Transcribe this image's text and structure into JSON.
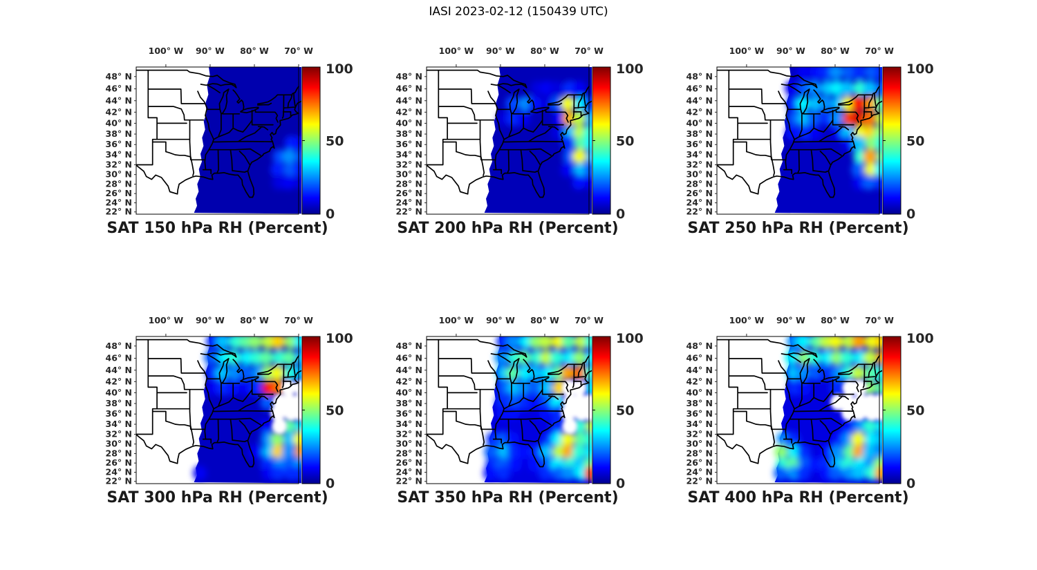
{
  "figure": {
    "title": "IASI 2023-02-12 (150439 UTC)",
    "instrument": "IASI",
    "date": "2023-02-12",
    "time_utc": "150439"
  },
  "axes": {
    "lon_tick_labels": [
      "100° W",
      "90° W",
      "80° W",
      "70° W"
    ],
    "lon_tick_values": [
      -100,
      -90,
      -80,
      -70
    ],
    "lat_tick_labels": [
      "48° N",
      "46° N",
      "44° N",
      "42° N",
      "40° N",
      "38° N",
      "36° N",
      "34° N",
      "32° N",
      "30° N",
      "28° N",
      "26° N",
      "24° N",
      "22° N"
    ],
    "lat_tick_values": [
      48,
      46,
      44,
      42,
      40,
      38,
      36,
      34,
      32,
      30,
      28,
      26,
      24,
      22
    ],
    "lon_range_deg_w": [
      106.7,
      70
    ],
    "lat_range_deg_n": [
      21.5,
      49.5
    ],
    "projection": "mercator"
  },
  "colorbar": {
    "tick_labels": [
      "100",
      "50",
      "0"
    ],
    "tick_values": [
      100,
      50,
      0
    ],
    "min": 0,
    "max": 100,
    "colormap": "jet"
  },
  "colors": {
    "text": "#262626",
    "axis": "#000000",
    "background": "#ffffff",
    "jet_stops": [
      {
        "t": 0.0,
        "c": "#00008f"
      },
      {
        "t": 0.11,
        "c": "#0000ff"
      },
      {
        "t": 0.36,
        "c": "#00ffff"
      },
      {
        "t": 0.61,
        "c": "#ffff00"
      },
      {
        "t": 0.86,
        "c": "#ff0000"
      },
      {
        "t": 1.0,
        "c": "#7f0000"
      }
    ]
  },
  "chart_grid": {
    "description": "Coarse RH grid estimated from the plotted satellite swath; rows north to south, cols west to east; -1 = no-data (white gap), null = outside swath",
    "lons_w": [
      92,
      89.5,
      87,
      84.5,
      82,
      79.5,
      77,
      74.5,
      72,
      69.5
    ],
    "lats_n": [
      48.5,
      46,
      43.5,
      41,
      38.5,
      36,
      33.5,
      31,
      28.5,
      26,
      23.5
    ],
    "no_data_value": -1
  },
  "chart_data": [
    {
      "type": "heatmap",
      "pressure_hPa": 150,
      "title": "SAT 150 hPa RH (Percent)",
      "variable": "Relative Humidity",
      "units": "Percent",
      "base_rh": 3,
      "rh_grid": [
        [
          null,
          3,
          3,
          3,
          3,
          3,
          3,
          3,
          3,
          3
        ],
        [
          null,
          3,
          3,
          3,
          3,
          3,
          3,
          3,
          3,
          3
        ],
        [
          null,
          3,
          3,
          3,
          3,
          3,
          3,
          3,
          3,
          3
        ],
        [
          null,
          3,
          3,
          3,
          3,
          3,
          3,
          3,
          3,
          3
        ],
        [
          null,
          3,
          3,
          3,
          3,
          3,
          3,
          3,
          4,
          6
        ],
        [
          null,
          3,
          3,
          3,
          3,
          3,
          3,
          6,
          14,
          12
        ],
        [
          null,
          3,
          3,
          3,
          3,
          3,
          5,
          18,
          25,
          18
        ],
        [
          3,
          3,
          3,
          3,
          3,
          3,
          6,
          14,
          20,
          14
        ],
        [
          3,
          3,
          3,
          3,
          3,
          3,
          3,
          8,
          10,
          8
        ],
        [
          3,
          3,
          3,
          3,
          3,
          3,
          3,
          4,
          5,
          4
        ],
        [
          3,
          3,
          3,
          3,
          3,
          3,
          3,
          3,
          3,
          3
        ]
      ]
    },
    {
      "type": "heatmap",
      "pressure_hPa": 200,
      "title": "SAT 200 hPa RH (Percent)",
      "variable": "Relative Humidity",
      "units": "Percent",
      "base_rh": 4,
      "rh_grid": [
        [
          null,
          4,
          4,
          4,
          5,
          6,
          5,
          5,
          6,
          5
        ],
        [
          null,
          4,
          5,
          6,
          8,
          10,
          8,
          15,
          10,
          6
        ],
        [
          null,
          5,
          18,
          25,
          12,
          8,
          20,
          60,
          35,
          15
        ],
        [
          null,
          8,
          15,
          10,
          6,
          5,
          10,
          70,
          55,
          30
        ],
        [
          null,
          5,
          6,
          5,
          4,
          4,
          8,
          30,
          55,
          40
        ],
        [
          null,
          4,
          4,
          4,
          4,
          4,
          5,
          15,
          45,
          35
        ],
        [
          null,
          4,
          4,
          4,
          4,
          4,
          5,
          20,
          60,
          30
        ],
        [
          4,
          4,
          4,
          4,
          4,
          4,
          4,
          10,
          30,
          20
        ],
        [
          4,
          4,
          4,
          4,
          4,
          4,
          4,
          6,
          12,
          10
        ],
        [
          4,
          4,
          4,
          4,
          4,
          4,
          4,
          5,
          6,
          5
        ],
        [
          4,
          4,
          4,
          4,
          4,
          4,
          4,
          4,
          4,
          4
        ]
      ]
    },
    {
      "type": "heatmap",
      "pressure_hPa": 250,
      "title": "SAT 250 hPa RH (Percent)",
      "variable": "Relative Humidity",
      "units": "Percent",
      "base_rh": 5,
      "rh_grid": [
        [
          null,
          8,
          10,
          12,
          15,
          25,
          20,
          15,
          20,
          15
        ],
        [
          null,
          10,
          20,
          25,
          30,
          35,
          30,
          40,
          30,
          20
        ],
        [
          null,
          15,
          35,
          30,
          25,
          30,
          60,
          85,
          70,
          45
        ],
        [
          null,
          20,
          30,
          20,
          15,
          25,
          80,
          90,
          75,
          55
        ],
        [
          null,
          12,
          15,
          10,
          8,
          10,
          30,
          60,
          65,
          50
        ],
        [
          null,
          8,
          8,
          6,
          5,
          6,
          10,
          30,
          50,
          40
        ],
        [
          null,
          6,
          6,
          5,
          5,
          5,
          8,
          40,
          70,
          45
        ],
        [
          5,
          5,
          5,
          5,
          5,
          5,
          6,
          20,
          60,
          35
        ],
        [
          5,
          5,
          5,
          5,
          5,
          5,
          5,
          10,
          20,
          15
        ],
        [
          5,
          5,
          5,
          5,
          5,
          5,
          5,
          6,
          8,
          6
        ],
        [
          5,
          5,
          5,
          5,
          5,
          5,
          5,
          5,
          5,
          5
        ]
      ]
    },
    {
      "type": "heatmap",
      "pressure_hPa": 300,
      "title": "SAT 300 hPa RH (Percent)",
      "variable": "Relative Humidity",
      "units": "Percent",
      "base_rh": 5,
      "rh_grid": [
        [
          null,
          15,
          30,
          40,
          45,
          50,
          55,
          65,
          50,
          35
        ],
        [
          null,
          20,
          35,
          40,
          35,
          40,
          45,
          40,
          45,
          30
        ],
        [
          null,
          15,
          30,
          25,
          20,
          25,
          50,
          60,
          40,
          30
        ],
        [
          null,
          10,
          15,
          12,
          10,
          15,
          85,
          75,
          -1,
          -1
        ],
        [
          null,
          8,
          8,
          6,
          5,
          8,
          20,
          -1,
          -1,
          -1
        ],
        [
          null,
          6,
          5,
          5,
          4,
          5,
          8,
          -1,
          -1,
          -1
        ],
        [
          null,
          5,
          5,
          4,
          4,
          5,
          10,
          -1,
          45,
          35
        ],
        [
          5,
          5,
          5,
          4,
          4,
          8,
          25,
          50,
          30,
          60
        ],
        [
          5,
          5,
          5,
          5,
          5,
          10,
          30,
          65,
          25,
          70
        ],
        [
          8,
          6,
          5,
          5,
          5,
          8,
          15,
          25,
          20,
          25
        ],
        [
          10,
          8,
          6,
          5,
          5,
          6,
          10,
          15,
          15,
          15
        ]
      ]
    },
    {
      "type": "heatmap",
      "pressure_hPa": 350,
      "title": "SAT 350 hPa RH (Percent)",
      "variable": "Relative Humidity",
      "units": "Percent",
      "base_rh": 8,
      "rh_grid": [
        [
          null,
          15,
          25,
          35,
          50,
          55,
          60,
          45,
          55,
          40
        ],
        [
          null,
          25,
          40,
          45,
          40,
          55,
          40,
          35,
          50,
          35
        ],
        [
          null,
          30,
          45,
          35,
          30,
          35,
          45,
          70,
          75,
          40
        ],
        [
          null,
          20,
          30,
          25,
          20,
          30,
          65,
          -1,
          -1,
          35
        ],
        [
          null,
          15,
          20,
          15,
          12,
          20,
          35,
          -1,
          -1,
          -1
        ],
        [
          null,
          12,
          12,
          10,
          10,
          12,
          15,
          -1,
          -1,
          -1
        ],
        [
          null,
          10,
          10,
          8,
          8,
          10,
          15,
          -1,
          40,
          55
        ],
        [
          15,
          20,
          12,
          10,
          10,
          15,
          35,
          60,
          45,
          40
        ],
        [
          20,
          30,
          15,
          12,
          15,
          30,
          55,
          70,
          40,
          35
        ],
        [
          15,
          20,
          12,
          10,
          12,
          20,
          35,
          40,
          30,
          45
        ],
        [
          12,
          15,
          10,
          8,
          10,
          15,
          20,
          25,
          35,
          80
        ]
      ]
    },
    {
      "type": "heatmap",
      "pressure_hPa": 400,
      "title": "SAT 400 hPa RH (Percent)",
      "variable": "Relative Humidity",
      "units": "Percent",
      "base_rh": 8,
      "rh_grid": [
        [
          null,
          25,
          35,
          45,
          55,
          60,
          55,
          70,
          60,
          65
        ],
        [
          null,
          35,
          50,
          40,
          35,
          50,
          40,
          35,
          55,
          70
        ],
        [
          null,
          30,
          25,
          20,
          15,
          25,
          40,
          55,
          45,
          40
        ],
        [
          null,
          15,
          12,
          10,
          8,
          15,
          -1,
          -1,
          50,
          45
        ],
        [
          null,
          10,
          8,
          6,
          5,
          -1,
          -1,
          -1,
          -1,
          -1
        ],
        [
          null,
          8,
          6,
          5,
          5,
          8,
          -1,
          -1,
          -1,
          -1
        ],
        [
          null,
          8,
          6,
          5,
          5,
          8,
          12,
          25,
          40,
          35
        ],
        [
          25,
          15,
          8,
          6,
          8,
          12,
          25,
          60,
          35,
          30
        ],
        [
          50,
          35,
          15,
          10,
          12,
          25,
          45,
          70,
          30,
          25
        ],
        [
          40,
          45,
          20,
          12,
          15,
          30,
          40,
          35,
          25,
          50
        ],
        [
          20,
          25,
          15,
          10,
          12,
          20,
          25,
          30,
          40,
          70
        ]
      ]
    }
  ]
}
